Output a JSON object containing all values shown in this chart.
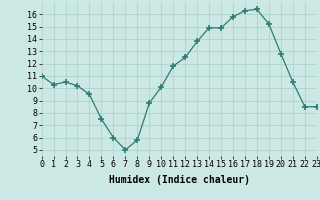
{
  "x": [
    0,
    1,
    2,
    3,
    4,
    5,
    6,
    7,
    8,
    9,
    10,
    11,
    12,
    13,
    14,
    15,
    16,
    17,
    18,
    19,
    20,
    21,
    22,
    23
  ],
  "y": [
    11,
    10.3,
    10.5,
    10.2,
    9.5,
    7.5,
    6.0,
    5.0,
    5.8,
    8.8,
    10.1,
    11.8,
    12.5,
    13.8,
    14.9,
    14.9,
    15.8,
    16.3,
    16.4,
    15.2,
    12.8,
    10.5,
    8.5,
    8.5
  ],
  "xlabel": "Humidex (Indice chaleur)",
  "xlim": [
    0,
    23
  ],
  "ylim": [
    4.5,
    17
  ],
  "bg_color": "#cce8e4",
  "grid_color": "#aacfcb",
  "line_color": "#2e7d6e",
  "marker_color": "#2e7d6e",
  "yticks": [
    5,
    6,
    7,
    8,
    9,
    10,
    11,
    12,
    13,
    14,
    15,
    16
  ],
  "xticks": [
    0,
    1,
    2,
    3,
    4,
    5,
    6,
    7,
    8,
    9,
    10,
    11,
    12,
    13,
    14,
    15,
    16,
    17,
    18,
    19,
    20,
    21,
    22,
    23
  ],
  "tick_fontsize": 6,
  "label_fontsize": 7
}
